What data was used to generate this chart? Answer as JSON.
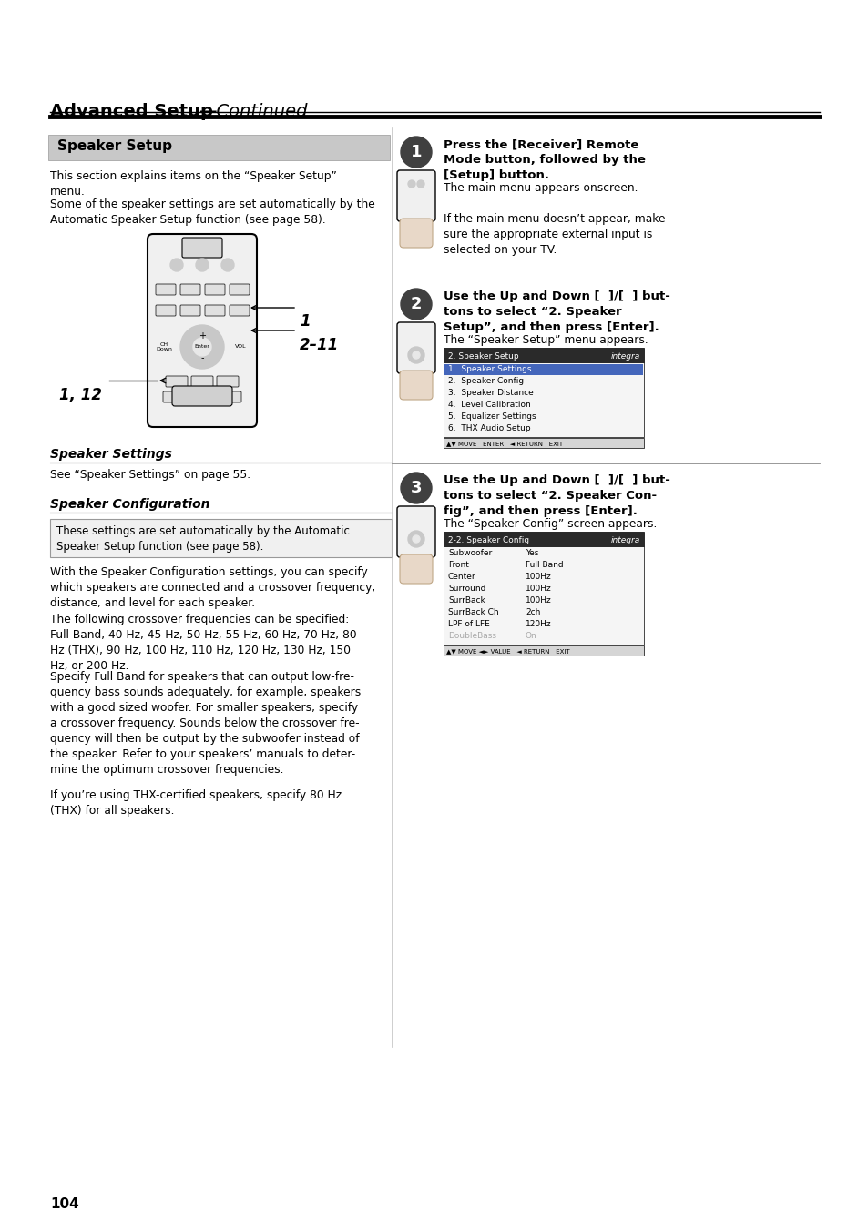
{
  "bg_color": "#ffffff",
  "page_number": "104",
  "header_title_bold": "Advanced Setup",
  "header_title_italic": "—Continued",
  "section1_title": "Speaker Setup",
  "section1_body1": "This section explains items on the “Speaker Setup”\nmenu.",
  "section1_body2": "Some of the speaker settings are set automatically by the\nAutomatic Speaker Setup function (see page 58).",
  "label_1": "1",
  "label_2_11": "2–11",
  "label_1_12": "1, 12",
  "section2_title": "Speaker Settings",
  "section2_body": "See “Speaker Settings” on page 55.",
  "section3_title": "Speaker Configuration",
  "section3_box_text": "These settings are set automatically by the Automatic\nSpeaker Setup function (see page 58).",
  "section3_body1": "With the Speaker Configuration settings, you can specify\nwhich speakers are connected and a crossover frequency,\ndistance, and level for each speaker.",
  "section3_body2": "The following crossover frequencies can be specified:\nFull Band, 40 Hz, 45 Hz, 50 Hz, 55 Hz, 60 Hz, 70 Hz, 80\nHz (THX), 90 Hz, 100 Hz, 110 Hz, 120 Hz, 130 Hz, 150\nHz, or 200 Hz.",
  "section3_body3": "Specify Full Band for speakers that can output low-fre-\nquency bass sounds adequately, for example, speakers\nwith a good sized woofer. For smaller speakers, specify\na crossover frequency. Sounds below the crossover fre-\nquency will then be output by the subwoofer instead of\nthe speaker. Refer to your speakers’ manuals to deter-\nmine the optimum crossover frequencies.",
  "section3_body4": "If you’re using THX-certified speakers, specify 80 Hz\n(THX) for all speakers.",
  "step1_title_bold": "Press the [Receiver] Remote\nMode button, followed by the\n[Setup] button.",
  "step1_body": "The main menu appears onscreen.\n\nIf the main menu doesn’t appear, make\nsure the appropriate external input is\nselected on your TV.",
  "step2_title_bold": "Use the Up and Down [  ]/[  ] but-\ntons to select “2. Speaker\nSetup”, and then press [Enter].",
  "step2_body": "The “Speaker Setup” menu appears.",
  "step3_title_bold": "Use the Up and Down [  ]/[  ] but-\ntons to select “2. Speaker Con-\nfig”, and then press [Enter].",
  "step3_body": "The “Speaker Config” screen appears.",
  "menu_items": [
    "1.  Speaker Settings",
    "2.  Speaker Config",
    "3.  Speaker Distance",
    "4.  Level Calibration",
    "5.  Equalizer Settings",
    "6.  THX Audio Setup"
  ],
  "config_items": [
    [
      "Subwoofer",
      "Yes"
    ],
    [
      "Front",
      "Full Band"
    ],
    [
      "Center",
      "100Hz"
    ],
    [
      "Surround",
      "100Hz"
    ],
    [
      "SurrBack",
      "100Hz"
    ],
    [
      "SurrBack Ch",
      "2ch"
    ],
    [
      "LPF of LFE",
      "120Hz"
    ],
    [
      "DoubleBass",
      "On"
    ]
  ],
  "toolbar_text": "▲▼ MOVE   ENTER   ◄ RETURN   EXIT",
  "cfg_toolbar_text": "▲▼ MOVE ◄► VALUE   ◄ RETURN   EXIT"
}
